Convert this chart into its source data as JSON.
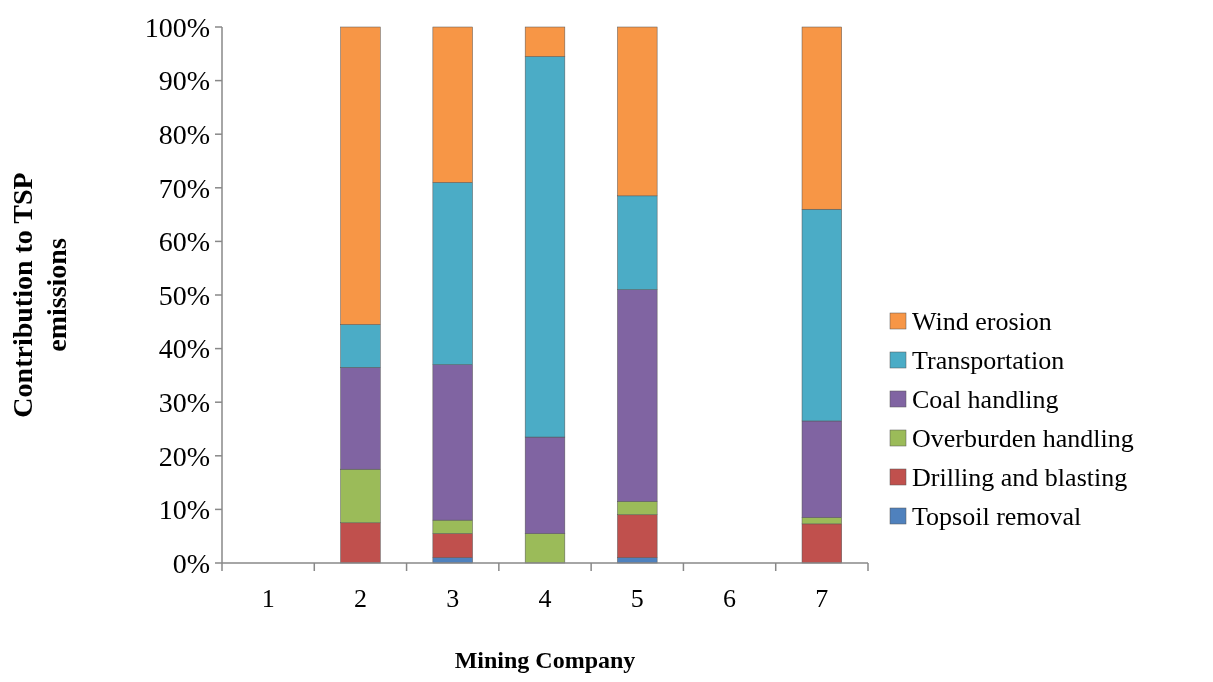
{
  "chart_data": {
    "type": "bar",
    "stacked": true,
    "xlabel": "Mining Company",
    "ylabel": "Contribution to TSP emissions",
    "categories": [
      "1",
      "2",
      "3",
      "4",
      "5",
      "6",
      "7"
    ],
    "series": [
      {
        "name": "Topsoil removal",
        "color": "#4f81bd",
        "values": [
          null,
          null,
          1,
          0,
          1,
          null,
          null
        ]
      },
      {
        "name": "Drilling and blasting",
        "color": "#c0504d",
        "values": [
          null,
          7.5,
          4.5,
          0,
          8,
          null,
          7.3
        ]
      },
      {
        "name": "Overburden handling",
        "color": "#9bbb59",
        "values": [
          null,
          10,
          2.5,
          5.5,
          2.5,
          null,
          1.2
        ]
      },
      {
        "name": "Coal handling",
        "color": "#8064a2",
        "values": [
          null,
          19,
          29,
          18,
          39.5,
          null,
          18
        ]
      },
      {
        "name": "Transportation",
        "color": "#4bacc6",
        "values": [
          null,
          8,
          34,
          71,
          17.5,
          null,
          39.5
        ]
      },
      {
        "name": "Wind erosion",
        "color": "#f79646",
        "values": [
          null,
          55.5,
          29,
          5.5,
          31.5,
          null,
          34
        ]
      }
    ],
    "ylim": [
      0,
      100
    ],
    "yticks": [
      {
        "value": 0,
        "label": "0%"
      },
      {
        "value": 10,
        "label": "10%"
      },
      {
        "value": 20,
        "label": "20%"
      },
      {
        "value": 30,
        "label": "30%"
      },
      {
        "value": 40,
        "label": "40%"
      },
      {
        "value": 50,
        "label": "50%"
      },
      {
        "value": 60,
        "label": "60%"
      },
      {
        "value": 70,
        "label": "70%"
      },
      {
        "value": 80,
        "label": "80%"
      },
      {
        "value": 90,
        "label": "90%"
      },
      {
        "value": 100,
        "label": "100%"
      }
    ],
    "grid": false,
    "legend": "right"
  }
}
